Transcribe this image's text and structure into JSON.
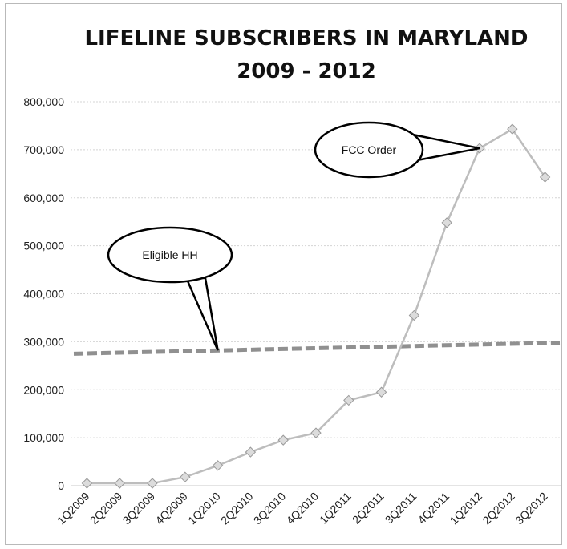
{
  "chart_data": {
    "type": "line",
    "title": "LIFELINE SUBSCRIBERS IN MARYLAND",
    "subtitle": "2009 - 2012",
    "xlabel": "",
    "ylabel": "",
    "ylim": [
      0,
      800000
    ],
    "yticks": [
      0,
      100000,
      200000,
      300000,
      400000,
      500000,
      600000,
      700000,
      800000
    ],
    "ytick_labels": [
      "0",
      "100,000",
      "200,000",
      "300,000",
      "400,000",
      "500,000",
      "600,000",
      "700,000",
      "800,000"
    ],
    "grid": true,
    "categories": [
      "1Q2009",
      "2Q2009",
      "3Q2009",
      "4Q2009",
      "1Q2010",
      "2Q2010",
      "3Q2010",
      "4Q2010",
      "1Q2011",
      "2Q2011",
      "3Q2011",
      "4Q2011",
      "1Q2012",
      "2Q2012",
      "3Q2012"
    ],
    "series": [
      {
        "values": [
          5000,
          5000,
          5000,
          18000,
          42000,
          70000,
          95000,
          110000,
          178000,
          195000,
          355000,
          548000,
          703000,
          743000,
          643000
        ],
        "color": "#bdbdbd",
        "marker": "diamond"
      }
    ],
    "reference_line": {
      "start_value": 275000,
      "end_value": 298000,
      "style": "dashed",
      "color": "#909090"
    },
    "annotations": [
      {
        "text": "FCC Order",
        "points_to_category": "1Q2012",
        "points_to_value": 703000
      },
      {
        "text": "Eligible HH",
        "points_to_category": "1Q2010",
        "points_to_value": 282000
      }
    ]
  }
}
